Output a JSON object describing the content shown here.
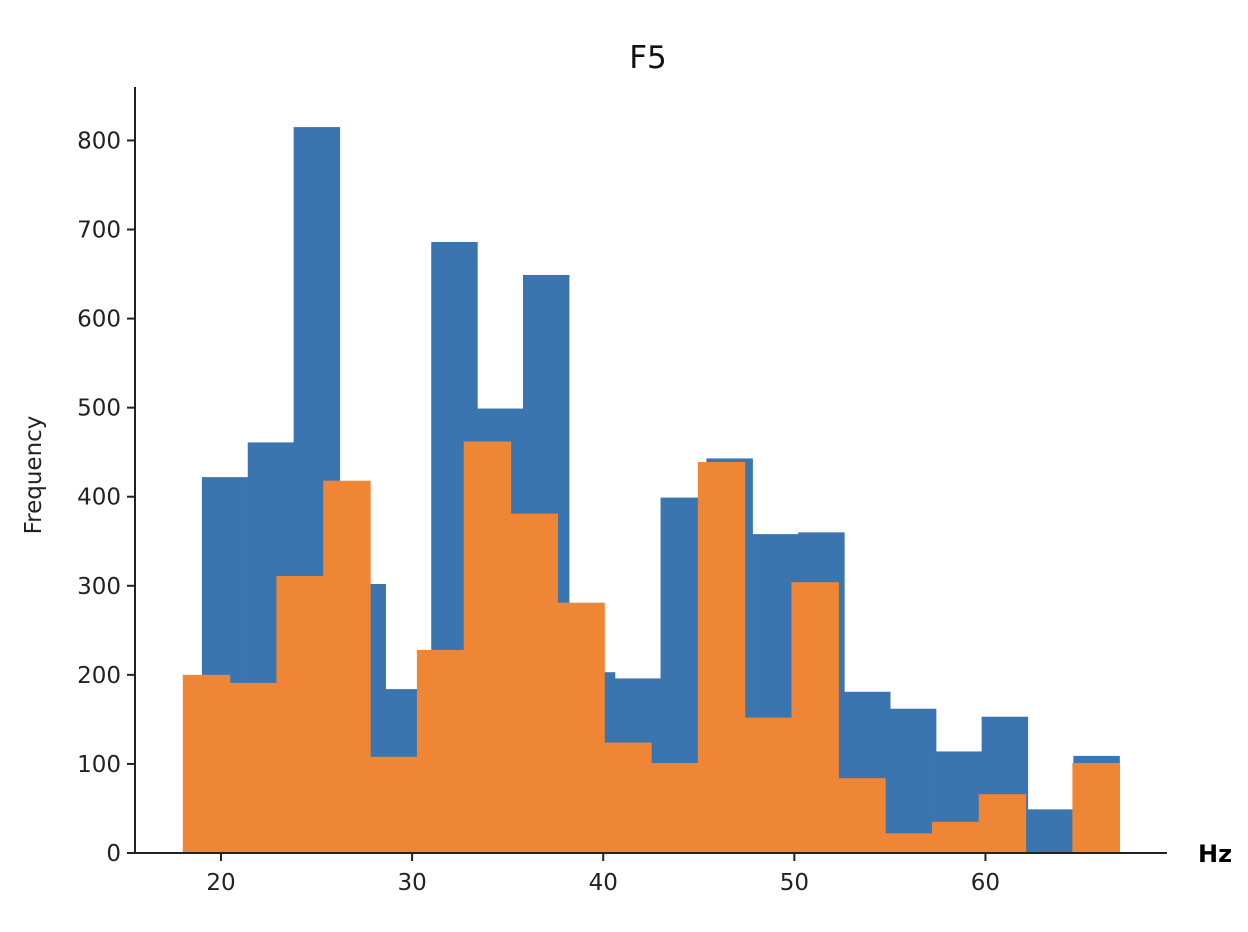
{
  "chart_data": {
    "type": "bar",
    "title": "F5",
    "xlabel": "Hz",
    "ylabel": "Frequency",
    "xlim": [
      15.5,
      69.5
    ],
    "ylim": [
      0,
      860
    ],
    "xticks": [
      20,
      30,
      40,
      50,
      60
    ],
    "yticks": [
      0,
      100,
      200,
      300,
      400,
      500,
      600,
      700,
      800
    ],
    "grid": false,
    "series": [
      {
        "color": "#3a75b0",
        "bins": [
          {
            "x0": 19.0,
            "x1": 21.4,
            "value": 422
          },
          {
            "x0": 21.4,
            "x1": 23.8,
            "value": 461
          },
          {
            "x0": 23.8,
            "x1": 26.2,
            "value": 815
          },
          {
            "x0": 26.2,
            "x1": 28.6,
            "value": 302
          },
          {
            "x0": 28.6,
            "x1": 31.0,
            "value": 184
          },
          {
            "x0": 31.0,
            "x1": 33.4,
            "value": 686
          },
          {
            "x0": 33.4,
            "x1": 35.8,
            "value": 499
          },
          {
            "x0": 35.8,
            "x1": 38.2,
            "value": 649
          },
          {
            "x0": 38.2,
            "x1": 40.6,
            "value": 203
          },
          {
            "x0": 40.6,
            "x1": 43.0,
            "value": 196
          },
          {
            "x0": 43.0,
            "x1": 45.4,
            "value": 399
          },
          {
            "x0": 45.4,
            "x1": 47.8,
            "value": 443
          },
          {
            "x0": 47.8,
            "x1": 50.2,
            "value": 358
          },
          {
            "x0": 50.2,
            "x1": 52.6,
            "value": 360
          },
          {
            "x0": 52.6,
            "x1": 55.0,
            "value": 181
          },
          {
            "x0": 55.0,
            "x1": 57.4,
            "value": 162
          },
          {
            "x0": 57.4,
            "x1": 59.8,
            "value": 114
          },
          {
            "x0": 59.8,
            "x1": 62.2,
            "value": 153
          },
          {
            "x0": 62.2,
            "x1": 64.6,
            "value": 49
          },
          {
            "x0": 64.6,
            "x1": 67.0,
            "value": 109
          }
        ]
      },
      {
        "color": "#ef8636",
        "bins": [
          {
            "x0": 18.0,
            "x1": 20.45,
            "value": 200
          },
          {
            "x0": 20.45,
            "x1": 22.9,
            "value": 191
          },
          {
            "x0": 22.9,
            "x1": 25.35,
            "value": 311
          },
          {
            "x0": 25.35,
            "x1": 27.8,
            "value": 418
          },
          {
            "x0": 27.8,
            "x1": 30.25,
            "value": 108
          },
          {
            "x0": 30.25,
            "x1": 32.7,
            "value": 228
          },
          {
            "x0": 32.7,
            "x1": 35.15,
            "value": 462
          },
          {
            "x0": 35.15,
            "x1": 37.6,
            "value": 381
          },
          {
            "x0": 37.6,
            "x1": 40.05,
            "value": 281
          },
          {
            "x0": 40.05,
            "x1": 42.5,
            "value": 124
          },
          {
            "x0": 42.5,
            "x1": 44.95,
            "value": 101
          },
          {
            "x0": 44.95,
            "x1": 47.4,
            "value": 439
          },
          {
            "x0": 47.4,
            "x1": 49.85,
            "value": 152
          },
          {
            "x0": 49.85,
            "x1": 52.3,
            "value": 304
          },
          {
            "x0": 52.3,
            "x1": 54.75,
            "value": 84
          },
          {
            "x0": 54.75,
            "x1": 57.2,
            "value": 22
          },
          {
            "x0": 57.2,
            "x1": 59.65,
            "value": 35
          },
          {
            "x0": 59.65,
            "x1": 62.1,
            "value": 66
          },
          {
            "x0": 62.1,
            "x1": 64.55,
            "value": 0
          },
          {
            "x0": 64.55,
            "x1": 67.0,
            "value": 101
          }
        ]
      }
    ]
  }
}
